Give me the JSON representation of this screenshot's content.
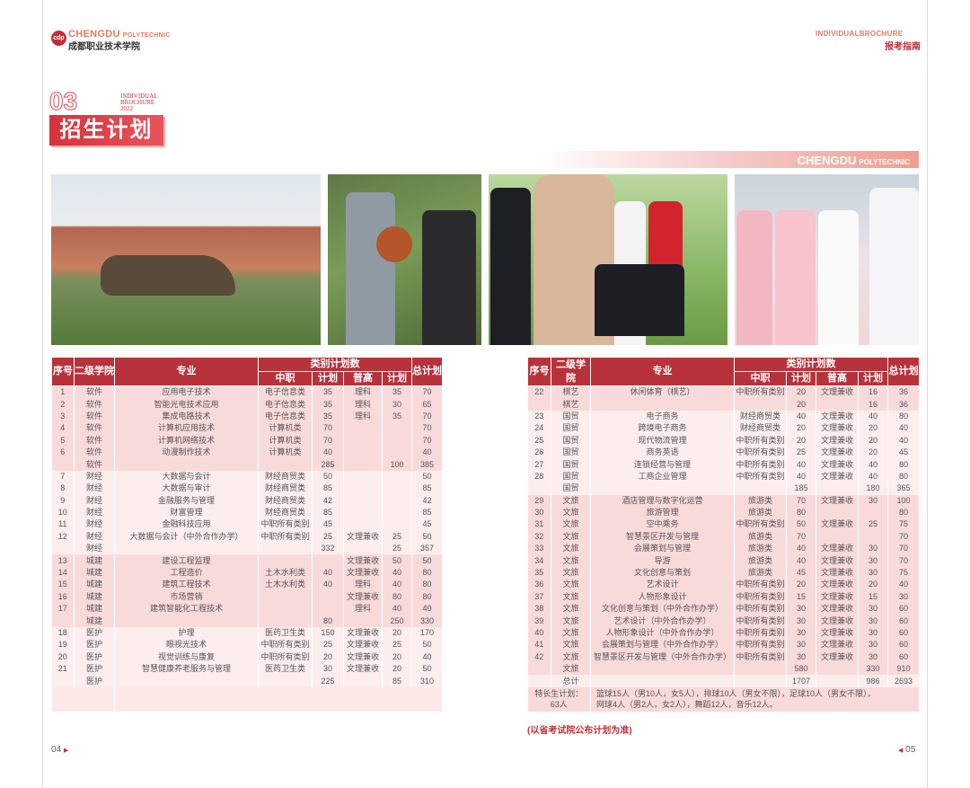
{
  "header": {
    "logo_en": "CHENGDU",
    "logo_en_sub": "POLYTECHNIC",
    "logo_cn": "成都职业技术学院",
    "right_en": "INDIVIDUALBROCHURE",
    "right_cn": "报考指南"
  },
  "section": {
    "number": "03",
    "en_line1": "INDIVIDUAL",
    "en_line2": "BROCHURE",
    "en_line3": "2022",
    "title": "招生计划"
  },
  "band": {
    "title": "CHENGDU",
    "sub": "POLYTECHNIC"
  },
  "colors": {
    "accent": "#b8323c",
    "row_a": "#f9dadb",
    "row_b": "#fdeeee",
    "note": "#c0303a"
  },
  "table_headers": {
    "no": "序号",
    "college": "二级学院",
    "major": "专业",
    "category_plan": "类别计划数",
    "zhongzhi": "中职",
    "plan1": "计划",
    "putong": "普高",
    "plan2": "计划",
    "total": "总计划"
  },
  "left_table": {
    "groups": [
      {
        "rows": [
          [
            "1",
            "软件",
            "应用电子技术",
            "电子信息类",
            "35",
            "理科",
            "35",
            "70"
          ],
          [
            "2",
            "软件",
            "智能光电技术应用",
            "电子信息类",
            "35",
            "理科",
            "30",
            "65"
          ],
          [
            "3",
            "软件",
            "集成电路技术",
            "电子信息类",
            "35",
            "理科",
            "35",
            "70"
          ],
          [
            "4",
            "软件",
            "计算机应用技术",
            "计算机类",
            "70",
            "",
            "",
            "70"
          ],
          [
            "5",
            "软件",
            "计算机网络技术",
            "计算机类",
            "70",
            "",
            "",
            "70"
          ],
          [
            "6",
            "软件",
            "动漫制作技术",
            "计算机类",
            "40",
            "",
            "",
            "40"
          ],
          [
            "",
            "软件",
            "",
            "",
            "285",
            "",
            "100",
            "385"
          ]
        ]
      },
      {
        "rows": [
          [
            "7",
            "财经",
            "大数据与会计",
            "财经商贸类",
            "50",
            "",
            "",
            "50"
          ],
          [
            "8",
            "财经",
            "大数据与审计",
            "财经商贸类",
            "85",
            "",
            "",
            "85"
          ],
          [
            "9",
            "财经",
            "金融服务与管理",
            "财经商贸类",
            "42",
            "",
            "",
            "42"
          ],
          [
            "10",
            "财经",
            "财富管理",
            "财经商贸类",
            "85",
            "",
            "",
            "85"
          ],
          [
            "11",
            "财经",
            "金融科技应用",
            "中职所有类别",
            "45",
            "",
            "",
            "45"
          ],
          [
            "12",
            "财经",
            "大数据与会计（中外合作办学）",
            "中职所有类别",
            "25",
            "文理兼收",
            "25",
            "50"
          ],
          [
            "",
            "财经",
            "",
            "",
            "332",
            "",
            "25",
            "357"
          ]
        ]
      },
      {
        "rows": [
          [
            "13",
            "城建",
            "建设工程监理",
            "",
            "",
            "文理兼收",
            "50",
            "50"
          ],
          [
            "14",
            "城建",
            "工程造价",
            "土木水利类",
            "40",
            "文理兼收",
            "40",
            "80"
          ],
          [
            "15",
            "城建",
            "建筑工程技术",
            "土木水利类",
            "40",
            "理科",
            "40",
            "80"
          ],
          [
            "16",
            "城建",
            "市场营销",
            "",
            "",
            "文理兼收",
            "80",
            "80"
          ],
          [
            "17",
            "城建",
            "建筑智能化工程技术",
            "",
            "",
            "理科",
            "40",
            "40"
          ],
          [
            "",
            "城建",
            "",
            "",
            "80",
            "",
            "250",
            "330"
          ]
        ]
      },
      {
        "rows": [
          [
            "18",
            "医护",
            "护理",
            "医药卫生类",
            "150",
            "文理兼收",
            "20",
            "170"
          ],
          [
            "19",
            "医护",
            "眼视光技术",
            "中职所有类别",
            "25",
            "文理兼收",
            "25",
            "50"
          ],
          [
            "20",
            "医护",
            "视觉训练与康复",
            "中职所有类别",
            "20",
            "文理兼收",
            "20",
            "40"
          ],
          [
            "21",
            "医护",
            "智慧健康养老服务与管理",
            "医药卫生类",
            "30",
            "文理兼收",
            "20",
            "50"
          ],
          [
            "",
            "医护",
            "",
            "",
            "225",
            "",
            "85",
            "310"
          ]
        ]
      }
    ]
  },
  "right_table": {
    "groups": [
      {
        "rows": [
          [
            "22",
            "棋艺",
            "休闲体育（棋艺）",
            "中职所有类别",
            "20",
            "文理兼收",
            "16",
            "36"
          ],
          [
            "",
            "棋艺",
            "",
            "",
            "20",
            "",
            "16",
            "36"
          ]
        ]
      },
      {
        "rows": [
          [
            "23",
            "国贸",
            "电子商务",
            "财经商贸类",
            "40",
            "文理兼收",
            "40",
            "80"
          ],
          [
            "24",
            "国贸",
            "跨境电子商务",
            "财经商贸类",
            "20",
            "文理兼收",
            "20",
            "40"
          ],
          [
            "25",
            "国贸",
            "现代物流管理",
            "中职所有类别",
            "20",
            "文理兼收",
            "20",
            "40"
          ],
          [
            "26",
            "国贸",
            "商务英语",
            "中职所有类别",
            "25",
            "文理兼收",
            "20",
            "45"
          ],
          [
            "27",
            "国贸",
            "连锁经营与管理",
            "中职所有类别",
            "40",
            "文理兼收",
            "40",
            "80"
          ],
          [
            "28",
            "国贸",
            "工商企业管理",
            "中职所有类别",
            "40",
            "文理兼收",
            "40",
            "80"
          ],
          [
            "",
            "国贸",
            "",
            "",
            "185",
            "",
            "180",
            "365"
          ]
        ]
      },
      {
        "rows": [
          [
            "29",
            "文旅",
            "酒店管理与数字化运营",
            "旅游类",
            "70",
            "文理兼收",
            "30",
            "100"
          ],
          [
            "30",
            "文旅",
            "旅游管理",
            "旅游类",
            "80",
            "",
            "",
            "80"
          ],
          [
            "31",
            "文旅",
            "空中乘务",
            "中职所有类别",
            "50",
            "文理兼收",
            "25",
            "75"
          ],
          [
            "32",
            "文旅",
            "智慧景区开发与管理",
            "旅游类",
            "70",
            "",
            "",
            "70"
          ],
          [
            "33",
            "文旅",
            "会展策划与管理",
            "旅游类",
            "40",
            "文理兼收",
            "30",
            "70"
          ],
          [
            "34",
            "文旅",
            "导游",
            "旅游类",
            "40",
            "文理兼收",
            "30",
            "70"
          ],
          [
            "35",
            "文旅",
            "文化创意与策划",
            "旅游类",
            "45",
            "文理兼收",
            "30",
            "75"
          ],
          [
            "36",
            "文旅",
            "艺术设计",
            "中职所有类别",
            "20",
            "文理兼收",
            "20",
            "40"
          ],
          [
            "37",
            "文旅",
            "人物形象设计",
            "中职所有类别",
            "15",
            "文理兼收",
            "15",
            "30"
          ],
          [
            "38",
            "文旅",
            "文化创意与策划（中外合作办学）",
            "中职所有类别",
            "30",
            "文理兼收",
            "30",
            "60"
          ],
          [
            "39",
            "文旅",
            "艺术设计（中外合作办学）",
            "中职所有类别",
            "30",
            "文理兼收",
            "30",
            "60"
          ],
          [
            "40",
            "文旅",
            "人物形象设计（中外合作办学）",
            "中职所有类别",
            "30",
            "文理兼收",
            "30",
            "60"
          ],
          [
            "41",
            "文旅",
            "会展策划与管理（中外合作办学）",
            "中职所有类别",
            "30",
            "文理兼收",
            "30",
            "60"
          ],
          [
            "42",
            "文旅",
            "智慧景区开发与管理（中外合作办学）",
            "中职所有类别",
            "30",
            "文理兼收",
            "30",
            "60"
          ],
          [
            "",
            "文旅",
            "",
            "",
            "580",
            "",
            "330",
            "910"
          ]
        ]
      },
      {
        "rows": [
          [
            "",
            "总计",
            "",
            "",
            "1707",
            "",
            "986",
            "2693"
          ]
        ]
      }
    ],
    "special": {
      "label": "特长生计划：",
      "count": "63人",
      "line1": "篮球15人（男10人，女5人），排球10人（男女不限），足球10人（男女不限），",
      "line2": "网球4人（男2人，女2人），舞蹈12人，音乐12人。"
    }
  },
  "note": "(以省考试院公布计划为准)",
  "pages": {
    "left": "04",
    "right": "05"
  }
}
